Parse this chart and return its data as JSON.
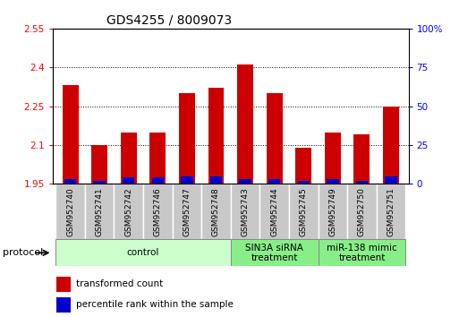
{
  "title": "GDS4255 / 8009073",
  "samples": [
    "GSM952740",
    "GSM952741",
    "GSM952742",
    "GSM952746",
    "GSM952747",
    "GSM952748",
    "GSM952743",
    "GSM952744",
    "GSM952745",
    "GSM952749",
    "GSM952750",
    "GSM952751"
  ],
  "red_values": [
    2.33,
    2.1,
    2.15,
    2.15,
    2.3,
    2.32,
    2.41,
    2.3,
    2.09,
    2.15,
    2.14,
    2.25
  ],
  "blue_percentile": [
    3,
    2,
    4,
    4,
    5,
    5,
    3,
    3,
    2,
    3,
    2,
    5
  ],
  "ylim_left": [
    1.95,
    2.55
  ],
  "ylim_right": [
    0,
    100
  ],
  "yticks_left": [
    1.95,
    2.1,
    2.25,
    2.4,
    2.55
  ],
  "yticks_right": [
    0,
    25,
    50,
    75,
    100
  ],
  "ytick_labels_left": [
    "1.95",
    "2.1",
    "2.25",
    "2.4",
    "2.55"
  ],
  "ytick_labels_right": [
    "0",
    "25",
    "50",
    "75",
    "100%"
  ],
  "bar_bottom": 1.95,
  "protocol_groups": [
    {
      "label": "control",
      "start": 0,
      "end": 6,
      "color": "#ccffcc"
    },
    {
      "label": "SIN3A siRNA\ntreatment",
      "start": 6,
      "end": 9,
      "color": "#88ee88"
    },
    {
      "label": "miR-138 mimic\ntreatment",
      "start": 9,
      "end": 12,
      "color": "#88ee88"
    }
  ],
  "legend_items": [
    {
      "label": "transformed count",
      "color": "#cc0000"
    },
    {
      "label": "percentile rank within the sample",
      "color": "#0000cc"
    }
  ],
  "protocol_label": "protocol",
  "bar_width": 0.55,
  "red_color": "#cc0000",
  "blue_color": "#0000cc",
  "grid_color": "#000000",
  "sample_area_color": "#c8c8c8",
  "title_fontsize": 10,
  "tick_fontsize": 7.5,
  "sample_fontsize": 6.5,
  "proto_fontsize": 7.5,
  "legend_fontsize": 7.5
}
